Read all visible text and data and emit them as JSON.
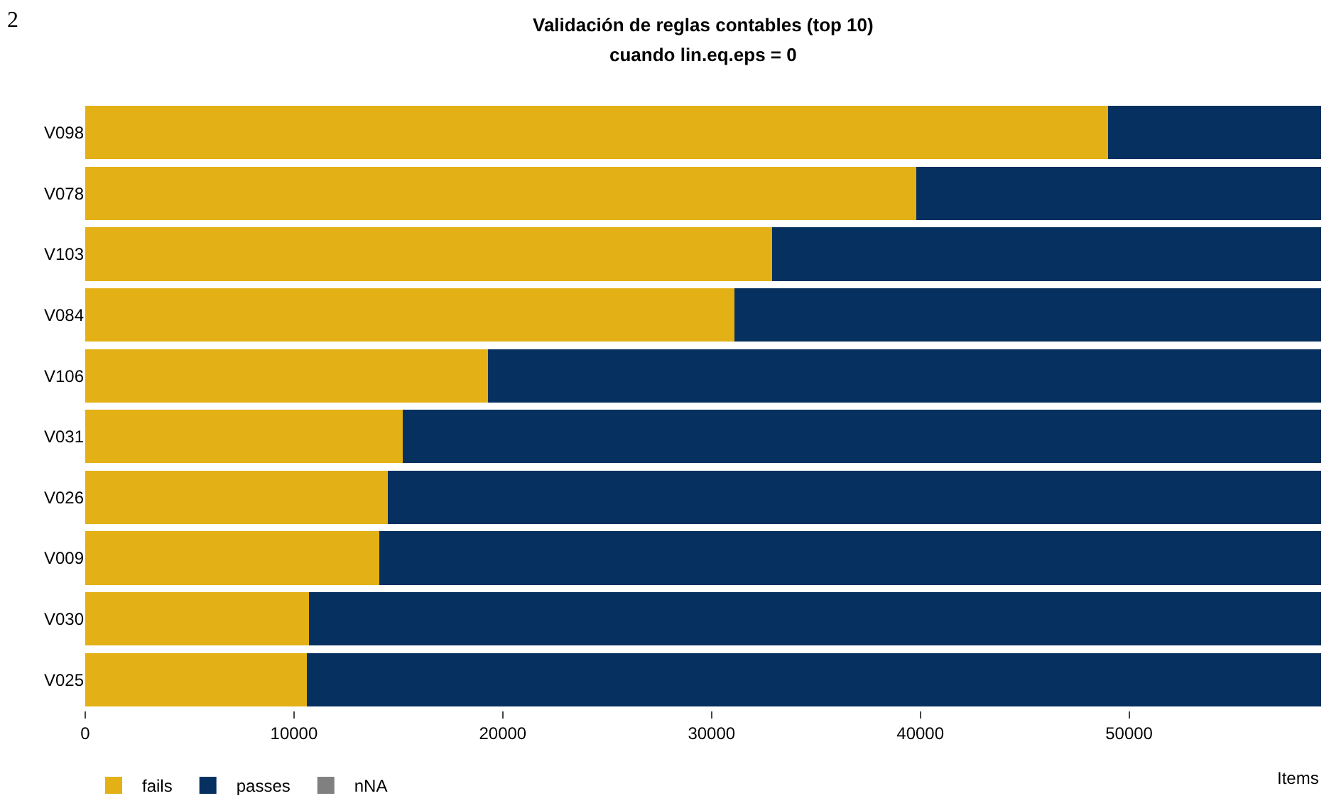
{
  "chart_data": {
    "type": "bar",
    "orientation": "horizontal",
    "stacked": true,
    "title": "Validación de reglas contables (top 10)",
    "subtitle": "cuando lin.eq.eps = 0",
    "xlabel": "Items",
    "categories": [
      "V098",
      "V078",
      "V103",
      "V084",
      "V106",
      "V031",
      "V026",
      "V009",
      "V030",
      "V025"
    ],
    "series": [
      {
        "name": "fails",
        "color": "#e3b015",
        "values": [
          49000,
          39800,
          32900,
          31100,
          19300,
          15200,
          14500,
          14100,
          10700,
          10600
        ]
      },
      {
        "name": "passes",
        "color": "#05305f",
        "values": [
          10200,
          19400,
          26300,
          28100,
          39900,
          44000,
          44700,
          45100,
          48500,
          48600
        ]
      },
      {
        "name": "nNA",
        "color": "#808080",
        "values": [
          0,
          0,
          0,
          0,
          0,
          0,
          0,
          0,
          0,
          0
        ]
      }
    ],
    "xlim": [
      0,
      59200
    ],
    "xticks": [
      0,
      10000,
      20000,
      30000,
      40000,
      50000
    ],
    "legend": "bottom left",
    "annotations": [
      "2"
    ]
  }
}
